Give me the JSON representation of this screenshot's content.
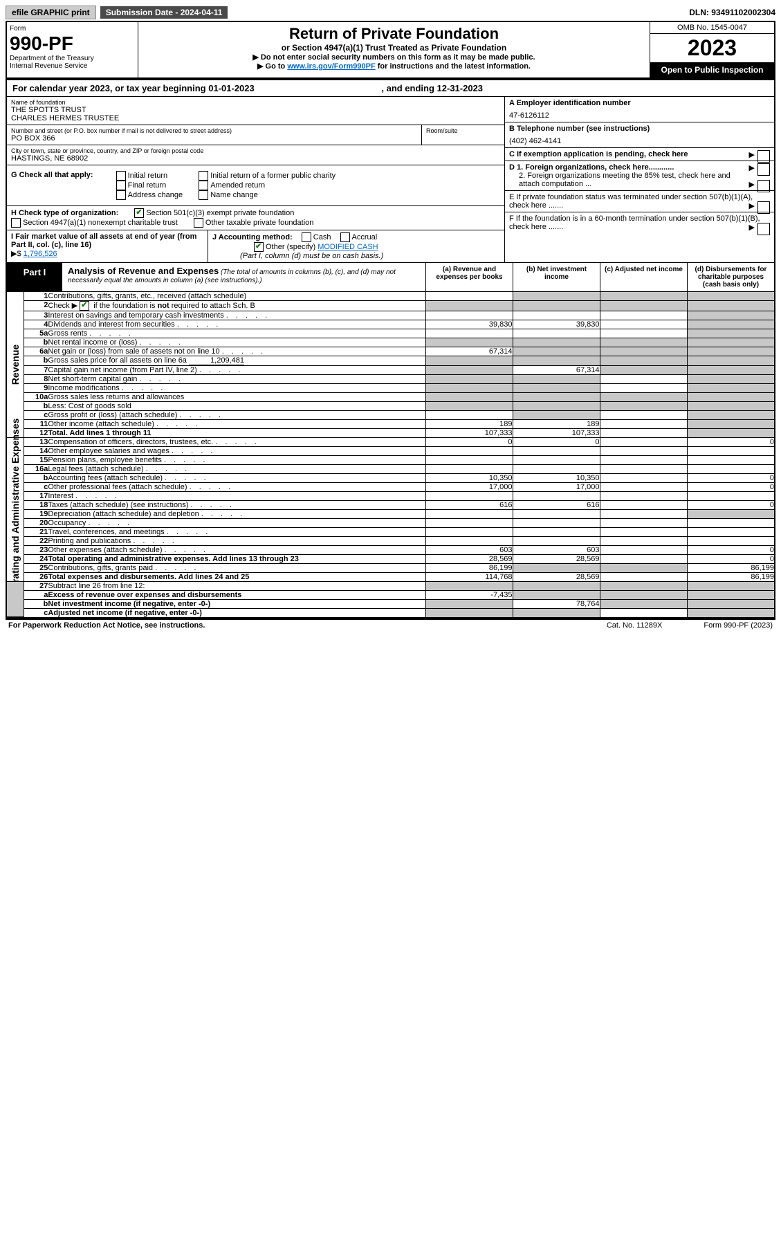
{
  "topbar": {
    "efile": "efile GRAPHIC print",
    "submission_label": "Submission Date - 2024-04-11",
    "dln": "DLN: 93491102002304"
  },
  "header": {
    "form_word": "Form",
    "form_num": "990-PF",
    "dept1": "Department of the Treasury",
    "dept2": "Internal Revenue Service",
    "title": "Return of Private Foundation",
    "subtitle": "or Section 4947(a)(1) Trust Treated as Private Foundation",
    "note1": "▶ Do not enter social security numbers on this form as it may be made public.",
    "note2_pre": "▶ Go to ",
    "note2_link": "www.irs.gov/Form990PF",
    "note2_post": " for instructions and the latest information.",
    "omb": "OMB No. 1545-0047",
    "year": "2023",
    "open": "Open to Public Inspection"
  },
  "calendar": {
    "pre": "For calendar year 2023, or tax year beginning ",
    "begin": "01-01-2023",
    "mid": " , and ending ",
    "end": "12-31-2023"
  },
  "foundation": {
    "name_label": "Name of foundation",
    "name1": "THE SPOTTS TRUST",
    "name2": "CHARLES HERMES TRUSTEE",
    "addr_label": "Number and street (or P.O. box number if mail is not delivered to street address)",
    "room_label": "Room/suite",
    "addr": "PO BOX 366",
    "city_label": "City or town, state or province, country, and ZIP or foreign postal code",
    "city": "HASTINGS, NE  68902"
  },
  "right_info": {
    "a_label": "A Employer identification number",
    "a_val": "47-6126112",
    "b_label": "B Telephone number (see instructions)",
    "b_val": "(402) 462-4141",
    "c_label": "C If exemption application is pending, check here",
    "d1": "D 1. Foreign organizations, check here............",
    "d2": "2. Foreign organizations meeting the 85% test, check here and attach computation ...",
    "e": "E  If private foundation status was terminated under section 507(b)(1)(A), check here .......",
    "f": "F  If the foundation is in a 60-month termination under section 507(b)(1)(B), check here .......",
    "arrow": "▶"
  },
  "g": {
    "label": "G Check all that apply:",
    "opts": [
      "Initial return",
      "Final return",
      "Address change",
      "Initial return of a former public charity",
      "Amended return",
      "Name change"
    ]
  },
  "h": {
    "label": "H Check type of organization:",
    "o1": "Section 501(c)(3) exempt private foundation",
    "o2": "Section 4947(a)(1) nonexempt charitable trust",
    "o3": "Other taxable private foundation"
  },
  "i": {
    "label": "I Fair market value of all assets at end of year (from Part II, col. (c), line 16)",
    "arrow": "▶$",
    "val": "1,796,526"
  },
  "j": {
    "label": "J Accounting method:",
    "cash": "Cash",
    "accrual": "Accrual",
    "other_label": "Other (specify)",
    "other_val": "MODIFIED CASH",
    "note": "(Part I, column (d) must be on cash basis.)"
  },
  "part1": {
    "label": "Part I",
    "title": "Analysis of Revenue and Expenses",
    "sub": " (The total of amounts in columns (b), (c), and (d) may not necessarily equal the amounts in column (a) (see instructions).)",
    "cols": {
      "a": "(a)   Revenue and expenses per books",
      "b": "(b)   Net investment income",
      "c": "(c)   Adjusted net income",
      "d": "(d)   Disbursements for charitable purposes (cash basis only)"
    }
  },
  "sideways": {
    "rev": "Revenue",
    "exp": "Operating and Administrative Expenses"
  },
  "lines": {
    "1": {
      "n": "1",
      "d": "Contributions, gifts, grants, etc., received (attach schedule)",
      "a": "",
      "b_gray": true,
      "c_gray": true,
      "d_gray": true
    },
    "2": {
      "n": "2",
      "d_pre": "Check ▶ ",
      "d_post": " if the foundation is not required to attach Sch. B",
      "a_gray": true,
      "b_gray": true,
      "c_gray": true,
      "d_gray": true,
      "checked": true
    },
    "3": {
      "n": "3",
      "d": "Interest on savings and temporary cash investments",
      "d_gray": true
    },
    "4": {
      "n": "4",
      "d": "Dividends and interest from securities",
      "a": "39,830",
      "b": "39,830",
      "d_gray": true
    },
    "5a": {
      "n": "5a",
      "d": "Gross rents",
      "d_gray": true
    },
    "5b": {
      "n": "b",
      "d": "Net rental income or (loss)",
      "a_gray": true,
      "b_gray": true,
      "c_gray": true,
      "d_gray": true
    },
    "6a": {
      "n": "6a",
      "d": "Net gain or (loss) from sale of assets not on line 10",
      "a": "67,314",
      "b_gray": true,
      "c_gray": true,
      "d_gray": true
    },
    "6b": {
      "n": "b",
      "d": "Gross sales price for all assets on line 6a",
      "v": "1,209,481",
      "a_gray": true,
      "b_gray": true,
      "c_gray": true,
      "d_gray": true
    },
    "7": {
      "n": "7",
      "d": "Capital gain net income (from Part IV, line 2)",
      "a_gray": true,
      "b": "67,314",
      "c_gray": true,
      "d_gray": true
    },
    "8": {
      "n": "8",
      "d": "Net short-term capital gain",
      "a_gray": true,
      "b_gray": true,
      "d_gray": true
    },
    "9": {
      "n": "9",
      "d": "Income modifications",
      "a_gray": true,
      "b_gray": true,
      "d_gray": true
    },
    "10a": {
      "n": "10a",
      "d": "Gross sales less returns and allowances",
      "a_gray": true,
      "b_gray": true,
      "c_gray": true,
      "d_gray": true
    },
    "10b": {
      "n": "b",
      "d": "Less: Cost of goods sold",
      "a_gray": true,
      "b_gray": true,
      "c_gray": true,
      "d_gray": true
    },
    "10c": {
      "n": "c",
      "d": "Gross profit or (loss) (attach schedule)",
      "a_gray": false,
      "b_gray": true,
      "d_gray": true
    },
    "11": {
      "n": "11",
      "d": "Other income (attach schedule)",
      "a": "189",
      "b": "189",
      "d_gray": true
    },
    "12": {
      "n": "12",
      "d": "Total. Add lines 1 through 11",
      "a": "107,333",
      "b": "107,333",
      "d_gray": true,
      "bold": true
    },
    "13": {
      "n": "13",
      "d": "Compensation of officers, directors, trustees, etc.",
      "a": "0",
      "b": "0",
      "dd": "0"
    },
    "14": {
      "n": "14",
      "d": "Other employee salaries and wages"
    },
    "15": {
      "n": "15",
      "d": "Pension plans, employee benefits"
    },
    "16a": {
      "n": "16a",
      "d": "Legal fees (attach schedule)"
    },
    "16b": {
      "n": "b",
      "d": "Accounting fees (attach schedule)",
      "a": "10,350",
      "b": "10,350",
      "dd": "0"
    },
    "16c": {
      "n": "c",
      "d": "Other professional fees (attach schedule)",
      "a": "17,000",
      "b": "17,000",
      "dd": "0"
    },
    "17": {
      "n": "17",
      "d": "Interest"
    },
    "18": {
      "n": "18",
      "d": "Taxes (attach schedule) (see instructions)",
      "a": "616",
      "b": "616",
      "dd": "0"
    },
    "19": {
      "n": "19",
      "d": "Depreciation (attach schedule) and depletion",
      "d_gray": true
    },
    "20": {
      "n": "20",
      "d": "Occupancy"
    },
    "21": {
      "n": "21",
      "d": "Travel, conferences, and meetings"
    },
    "22": {
      "n": "22",
      "d": "Printing and publications"
    },
    "23": {
      "n": "23",
      "d": "Other expenses (attach schedule)",
      "a": "603",
      "b": "603",
      "dd": "0"
    },
    "24": {
      "n": "24",
      "d": "Total operating and administrative expenses. Add lines 13 through 23",
      "a": "28,569",
      "b": "28,569",
      "dd": "0",
      "bold": true
    },
    "25": {
      "n": "25",
      "d": "Contributions, gifts, grants paid",
      "a": "86,199",
      "b_gray": true,
      "c_gray": true,
      "dd": "86,199"
    },
    "26": {
      "n": "26",
      "d": "Total expenses and disbursements. Add lines 24 and 25",
      "a": "114,768",
      "b": "28,569",
      "dd": "86,199",
      "bold": true
    },
    "27": {
      "n": "27",
      "d": "Subtract line 26 from line 12:",
      "a_gray": true,
      "b_gray": true,
      "c_gray": true,
      "d_gray": true
    },
    "27a": {
      "n": "a",
      "d": "Excess of revenue over expenses and disbursements",
      "a": "-7,435",
      "b_gray": true,
      "c_gray": true,
      "d_gray": true,
      "bold": true
    },
    "27b": {
      "n": "b",
      "d": "Net investment income (if negative, enter -0-)",
      "a_gray": true,
      "b": "78,764",
      "c_gray": true,
      "d_gray": true,
      "bold": true
    },
    "27c": {
      "n": "c",
      "d": "Adjusted net income (if negative, enter -0-)",
      "a_gray": true,
      "b_gray": true,
      "d_gray": true,
      "bold": true
    }
  },
  "footer": {
    "l": "For Paperwork Reduction Act Notice, see instructions.",
    "m": "Cat. No. 11289X",
    "r": "Form 990-PF (2023)"
  },
  "colors": {
    "gray": "#c8c8c8",
    "darkbtn": "#4a4a4a",
    "check": "#0a7a0a",
    "link": "#0066cc"
  }
}
